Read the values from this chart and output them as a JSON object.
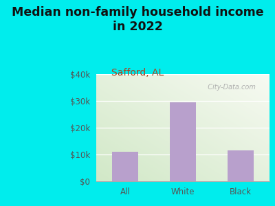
{
  "title": "Median non-family household income\nin 2022",
  "subtitle": "Safford, AL",
  "categories": [
    "All",
    "White",
    "Black"
  ],
  "values": [
    11000,
    29500,
    11500
  ],
  "bar_color": "#b8a0cc",
  "title_fontsize": 12.5,
  "subtitle_fontsize": 10,
  "subtitle_color": "#aa4422",
  "title_color": "#111111",
  "tick_color": "#555555",
  "background_outer": "#00eded",
  "background_plot_left": "#d8e8c8",
  "background_plot_right": "#f8f8f0",
  "ylim": [
    0,
    40000
  ],
  "yticks": [
    0,
    10000,
    20000,
    30000,
    40000
  ],
  "ytick_labels": [
    "$0",
    "$10k",
    "$20k",
    "$30k",
    "$40k"
  ],
  "watermark": "  City-Data.com"
}
